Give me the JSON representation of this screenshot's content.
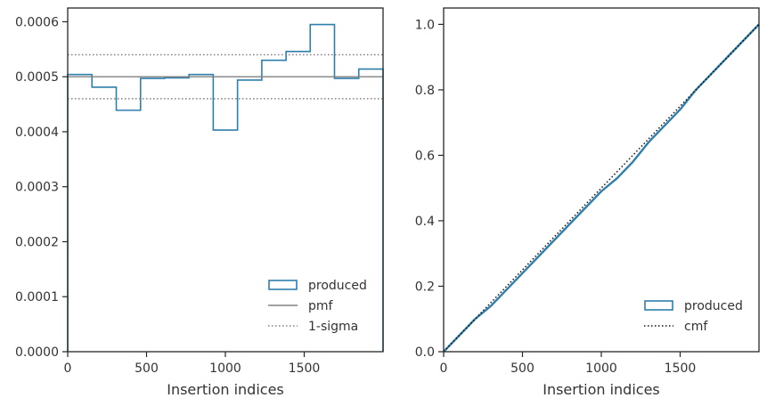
{
  "chart_data": [
    {
      "type": "step",
      "xlabel": "Insertion indices",
      "ylabel": "",
      "xlim": [
        0,
        2000
      ],
      "ylim": [
        0,
        0.000625
      ],
      "xticks": [
        0,
        500,
        1000,
        1500
      ],
      "xtick_labels": [
        "0",
        "500",
        "1000",
        "1500"
      ],
      "yticks": [
        0,
        0.0001,
        0.0002,
        0.0003,
        0.0004,
        0.0005,
        0.0006
      ],
      "ytick_labels": [
        "0.0000",
        "0.0001",
        "0.0002",
        "0.0003",
        "0.0004",
        "0.0005",
        "0.0006"
      ],
      "bin_edges": [
        0,
        154,
        308,
        462,
        615,
        769,
        923,
        1077,
        1231,
        1385,
        1538,
        1692,
        1846,
        2000
      ],
      "series": [
        {
          "name": "produced",
          "style": "step",
          "color": "#2f7fac",
          "values": [
            0.000504,
            0.000481,
            0.000439,
            0.000497,
            0.000498,
            0.000504,
            0.000403,
            0.000494,
            0.00053,
            0.000546,
            0.000595,
            0.000497,
            0.000514
          ]
        },
        {
          "name": "pmf",
          "style": "hline",
          "color": "#808080",
          "y": 0.0005
        },
        {
          "name": "1-sigma",
          "style": "hline-dotted",
          "color": "#808080",
          "y": [
            0.00046,
            0.00054
          ]
        }
      ],
      "legend": [
        "produced",
        "pmf",
        "1-sigma"
      ],
      "legend_placement": "lower-right"
    },
    {
      "type": "line",
      "xlabel": "Insertion indices",
      "ylabel": "",
      "xlim": [
        0,
        2000
      ],
      "ylim": [
        0,
        1.05
      ],
      "xticks": [
        0,
        500,
        1000,
        1500
      ],
      "xtick_labels": [
        "0",
        "500",
        "1000",
        "1500"
      ],
      "yticks": [
        0,
        0.2,
        0.4,
        0.6,
        0.8,
        1.0
      ],
      "ytick_labels": [
        "0.0",
        "0.2",
        "0.4",
        "0.6",
        "0.8",
        "1.0"
      ],
      "series": [
        {
          "name": "produced",
          "style": "step",
          "color": "#2f7fac",
          "x": [
            0,
            100,
            200,
            300,
            400,
            500,
            600,
            700,
            800,
            900,
            1000,
            1100,
            1200,
            1300,
            1400,
            1500,
            1600,
            1700,
            1800,
            1900,
            2000
          ],
          "values": [
            0,
            0.05,
            0.1,
            0.14,
            0.19,
            0.24,
            0.29,
            0.34,
            0.39,
            0.44,
            0.49,
            0.53,
            0.58,
            0.64,
            0.69,
            0.74,
            0.8,
            0.85,
            0.9,
            0.95,
            1.0
          ]
        },
        {
          "name": "cmf",
          "style": "dotted",
          "color": "#111111",
          "x": [
            0,
            2000
          ],
          "values": [
            0,
            1.0
          ]
        }
      ],
      "legend": [
        "produced",
        "cmf"
      ],
      "legend_placement": "lower-right"
    }
  ]
}
